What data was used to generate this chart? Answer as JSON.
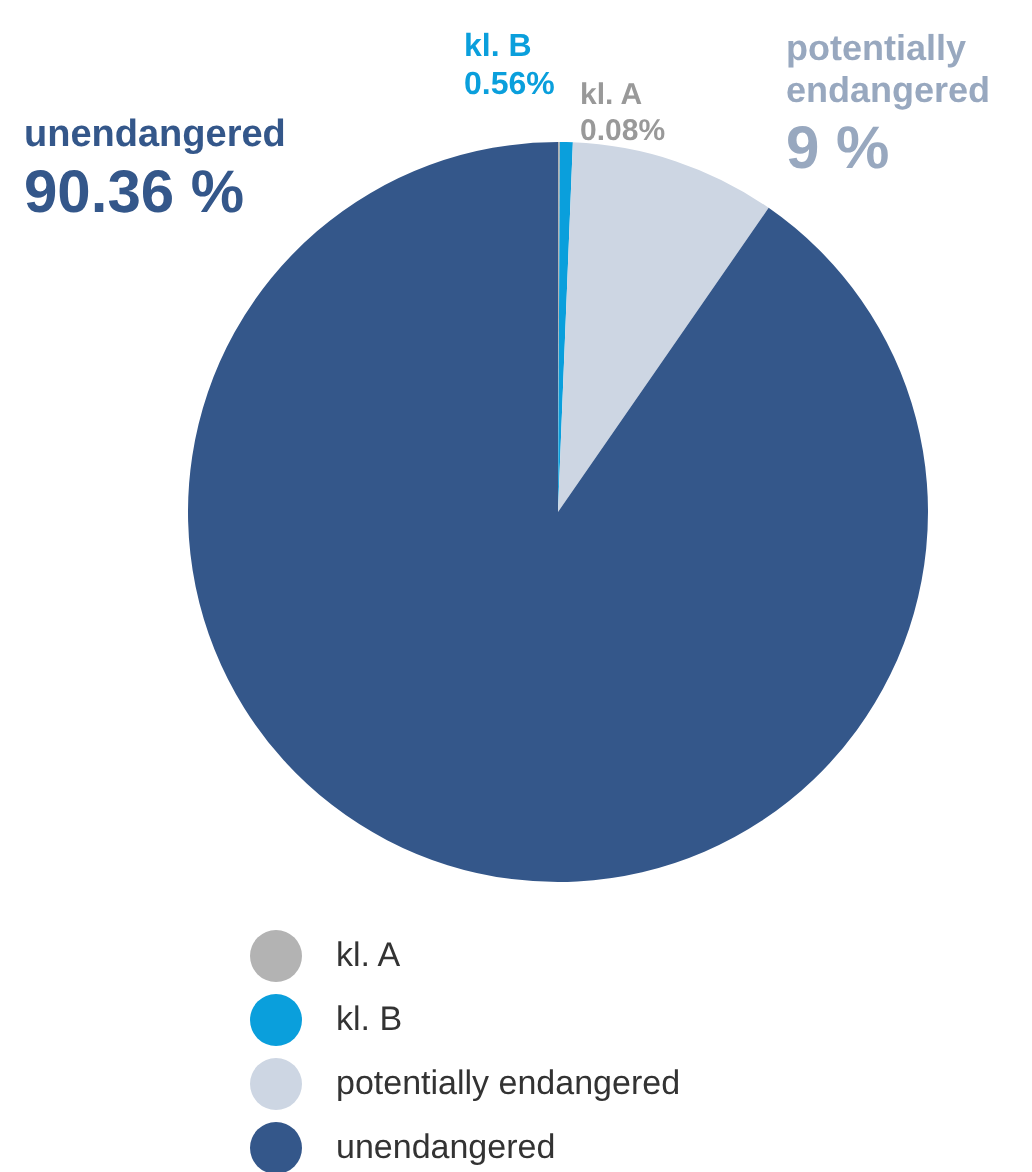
{
  "chart_data": {
    "type": "pie",
    "categories": [
      "kl. A",
      "kl. B",
      "potentially endangered",
      "unendangered"
    ],
    "values": [
      0.08,
      0.56,
      9,
      90.36
    ],
    "colors": [
      "#b3b3b3",
      "#0a9fdc",
      "#cdd6e3",
      "#34578a"
    ],
    "value_labels": [
      "0.08%",
      "0.56%",
      "9 %",
      "90.36 %"
    ],
    "legend": "bottom"
  }
}
